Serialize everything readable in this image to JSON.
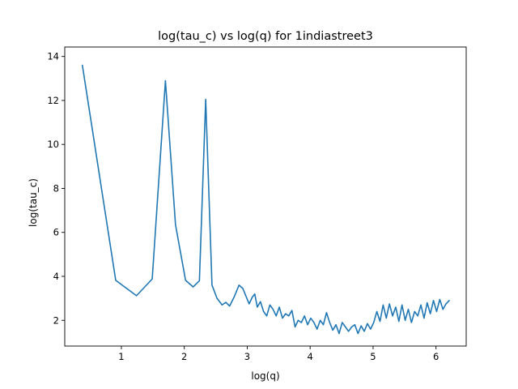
{
  "chart_data": {
    "type": "line",
    "title": "log(tau_c) vs log(q) for 1indiastreet3",
    "xlabel": "log(q)",
    "ylabel": "log(tau_c)",
    "xlim": [
      0.1,
      6.48
    ],
    "ylim": [
      0.83,
      14.43
    ],
    "xticks": [
      1,
      2,
      3,
      4,
      5,
      6
    ],
    "yticks": [
      2,
      4,
      6,
      8,
      10,
      12,
      14
    ],
    "xtick_labels": [
      "1",
      "2",
      "3",
      "4",
      "5",
      "6"
    ],
    "ytick_labels": [
      "2",
      "4",
      "6",
      "8",
      "10",
      "12",
      "14"
    ],
    "grid": false,
    "legend": false,
    "series": [
      {
        "color": "#1f77b4",
        "x": [
          0.38,
          0.91,
          1.24,
          1.49,
          1.7,
          1.86,
          2.02,
          2.14,
          2.24,
          2.34,
          2.44,
          2.52,
          2.6,
          2.66,
          2.72,
          2.79,
          2.87,
          2.93,
          2.98,
          3.03,
          3.08,
          3.12,
          3.16,
          3.21,
          3.26,
          3.31,
          3.36,
          3.41,
          3.46,
          3.51,
          3.56,
          3.61,
          3.66,
          3.71,
          3.76,
          3.81,
          3.86,
          3.91,
          3.96,
          4.01,
          4.06,
          4.11,
          4.16,
          4.21,
          4.26,
          4.31,
          4.36,
          4.41,
          4.46,
          4.51,
          4.56,
          4.61,
          4.66,
          4.71,
          4.76,
          4.81,
          4.86,
          4.91,
          4.96,
          5.01,
          5.06,
          5.11,
          5.16,
          5.21,
          5.26,
          5.31,
          5.36,
          5.41,
          5.46,
          5.51,
          5.56,
          5.61,
          5.66,
          5.71,
          5.76,
          5.81,
          5.86,
          5.91,
          5.96,
          6.01,
          6.06,
          6.11,
          6.16,
          6.21
        ],
        "y": [
          13.6,
          3.82,
          3.12,
          3.88,
          12.9,
          6.35,
          3.82,
          3.52,
          3.8,
          12.05,
          3.6,
          3.0,
          2.7,
          2.82,
          2.65,
          3.05,
          3.6,
          3.45,
          3.1,
          2.75,
          3.05,
          3.2,
          2.6,
          2.85,
          2.4,
          2.2,
          2.7,
          2.5,
          2.2,
          2.6,
          2.1,
          2.3,
          2.2,
          2.45,
          1.7,
          2.0,
          1.9,
          2.2,
          1.8,
          2.1,
          1.9,
          1.6,
          2.0,
          1.8,
          2.35,
          1.9,
          1.55,
          1.8,
          1.4,
          1.9,
          1.7,
          1.5,
          1.7,
          1.8,
          1.4,
          1.75,
          1.5,
          1.85,
          1.6,
          1.9,
          2.4,
          1.95,
          2.7,
          2.1,
          2.75,
          2.2,
          2.6,
          1.95,
          2.7,
          2.0,
          2.5,
          1.9,
          2.4,
          2.2,
          2.7,
          2.1,
          2.8,
          2.3,
          2.9,
          2.4,
          2.95,
          2.5,
          2.75,
          2.9
        ]
      }
    ]
  }
}
